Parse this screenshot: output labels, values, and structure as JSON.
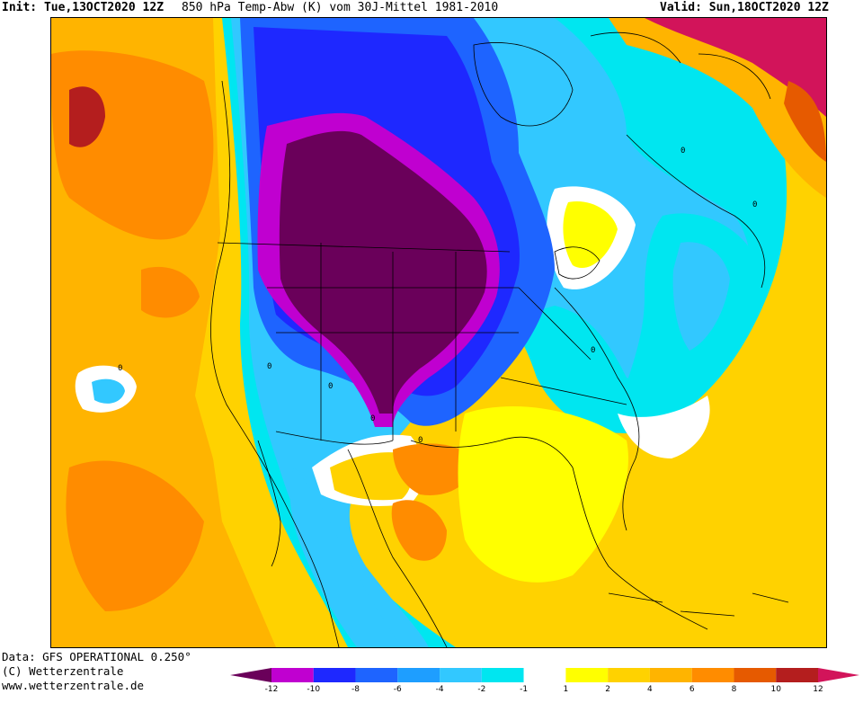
{
  "header": {
    "init_label": "Init:",
    "init_value": "Tue,13OCT2020 12Z",
    "description": "850 hPa Temp-Abw (K) vom 30J-Mittel 1981-2010",
    "valid_label": "Valid:",
    "valid_value": "Sun,18OCT2020 12Z"
  },
  "footer": {
    "data_source": "Data: GFS OPERATIONAL 0.250°",
    "copyright": "(C) Wetterzentrale",
    "url": "www.wetterzentrale.de"
  },
  "legend": {
    "colors": [
      "#6a005a",
      "#c000d0",
      "#1e28ff",
      "#1e64ff",
      "#1e9eff",
      "#32c8ff",
      "#00e6f0",
      "#ffffff",
      "#ffff00",
      "#ffd200",
      "#ffb400",
      "#ff8c00",
      "#e65a00",
      "#b41e1e",
      "#d2145a"
    ],
    "tick_labels": [
      "-12",
      "-10",
      "-8",
      "-6",
      "-4",
      "-2",
      "-1",
      "1",
      "2",
      "4",
      "6",
      "8",
      "10",
      "12"
    ]
  },
  "contour_labels": [
    "0",
    "0",
    "0",
    "0",
    "0",
    "0",
    "0",
    "0"
  ],
  "map_colors": {
    "ocean_warm": "#ffb400",
    "ocean_hot": "#ff8c00",
    "ocean_extreme": "#b41e1e",
    "cold_core": "#6a005a",
    "cold_ring": "#c000d0",
    "cold_blue": "#1e28ff",
    "cold_mid": "#1e9eff",
    "cold_light": "#32c8ff",
    "neutral": "#ffffff",
    "warm_yellow": "#ffff00",
    "warm_gold": "#ffd200",
    "arctic_hot": "#d2145a"
  }
}
